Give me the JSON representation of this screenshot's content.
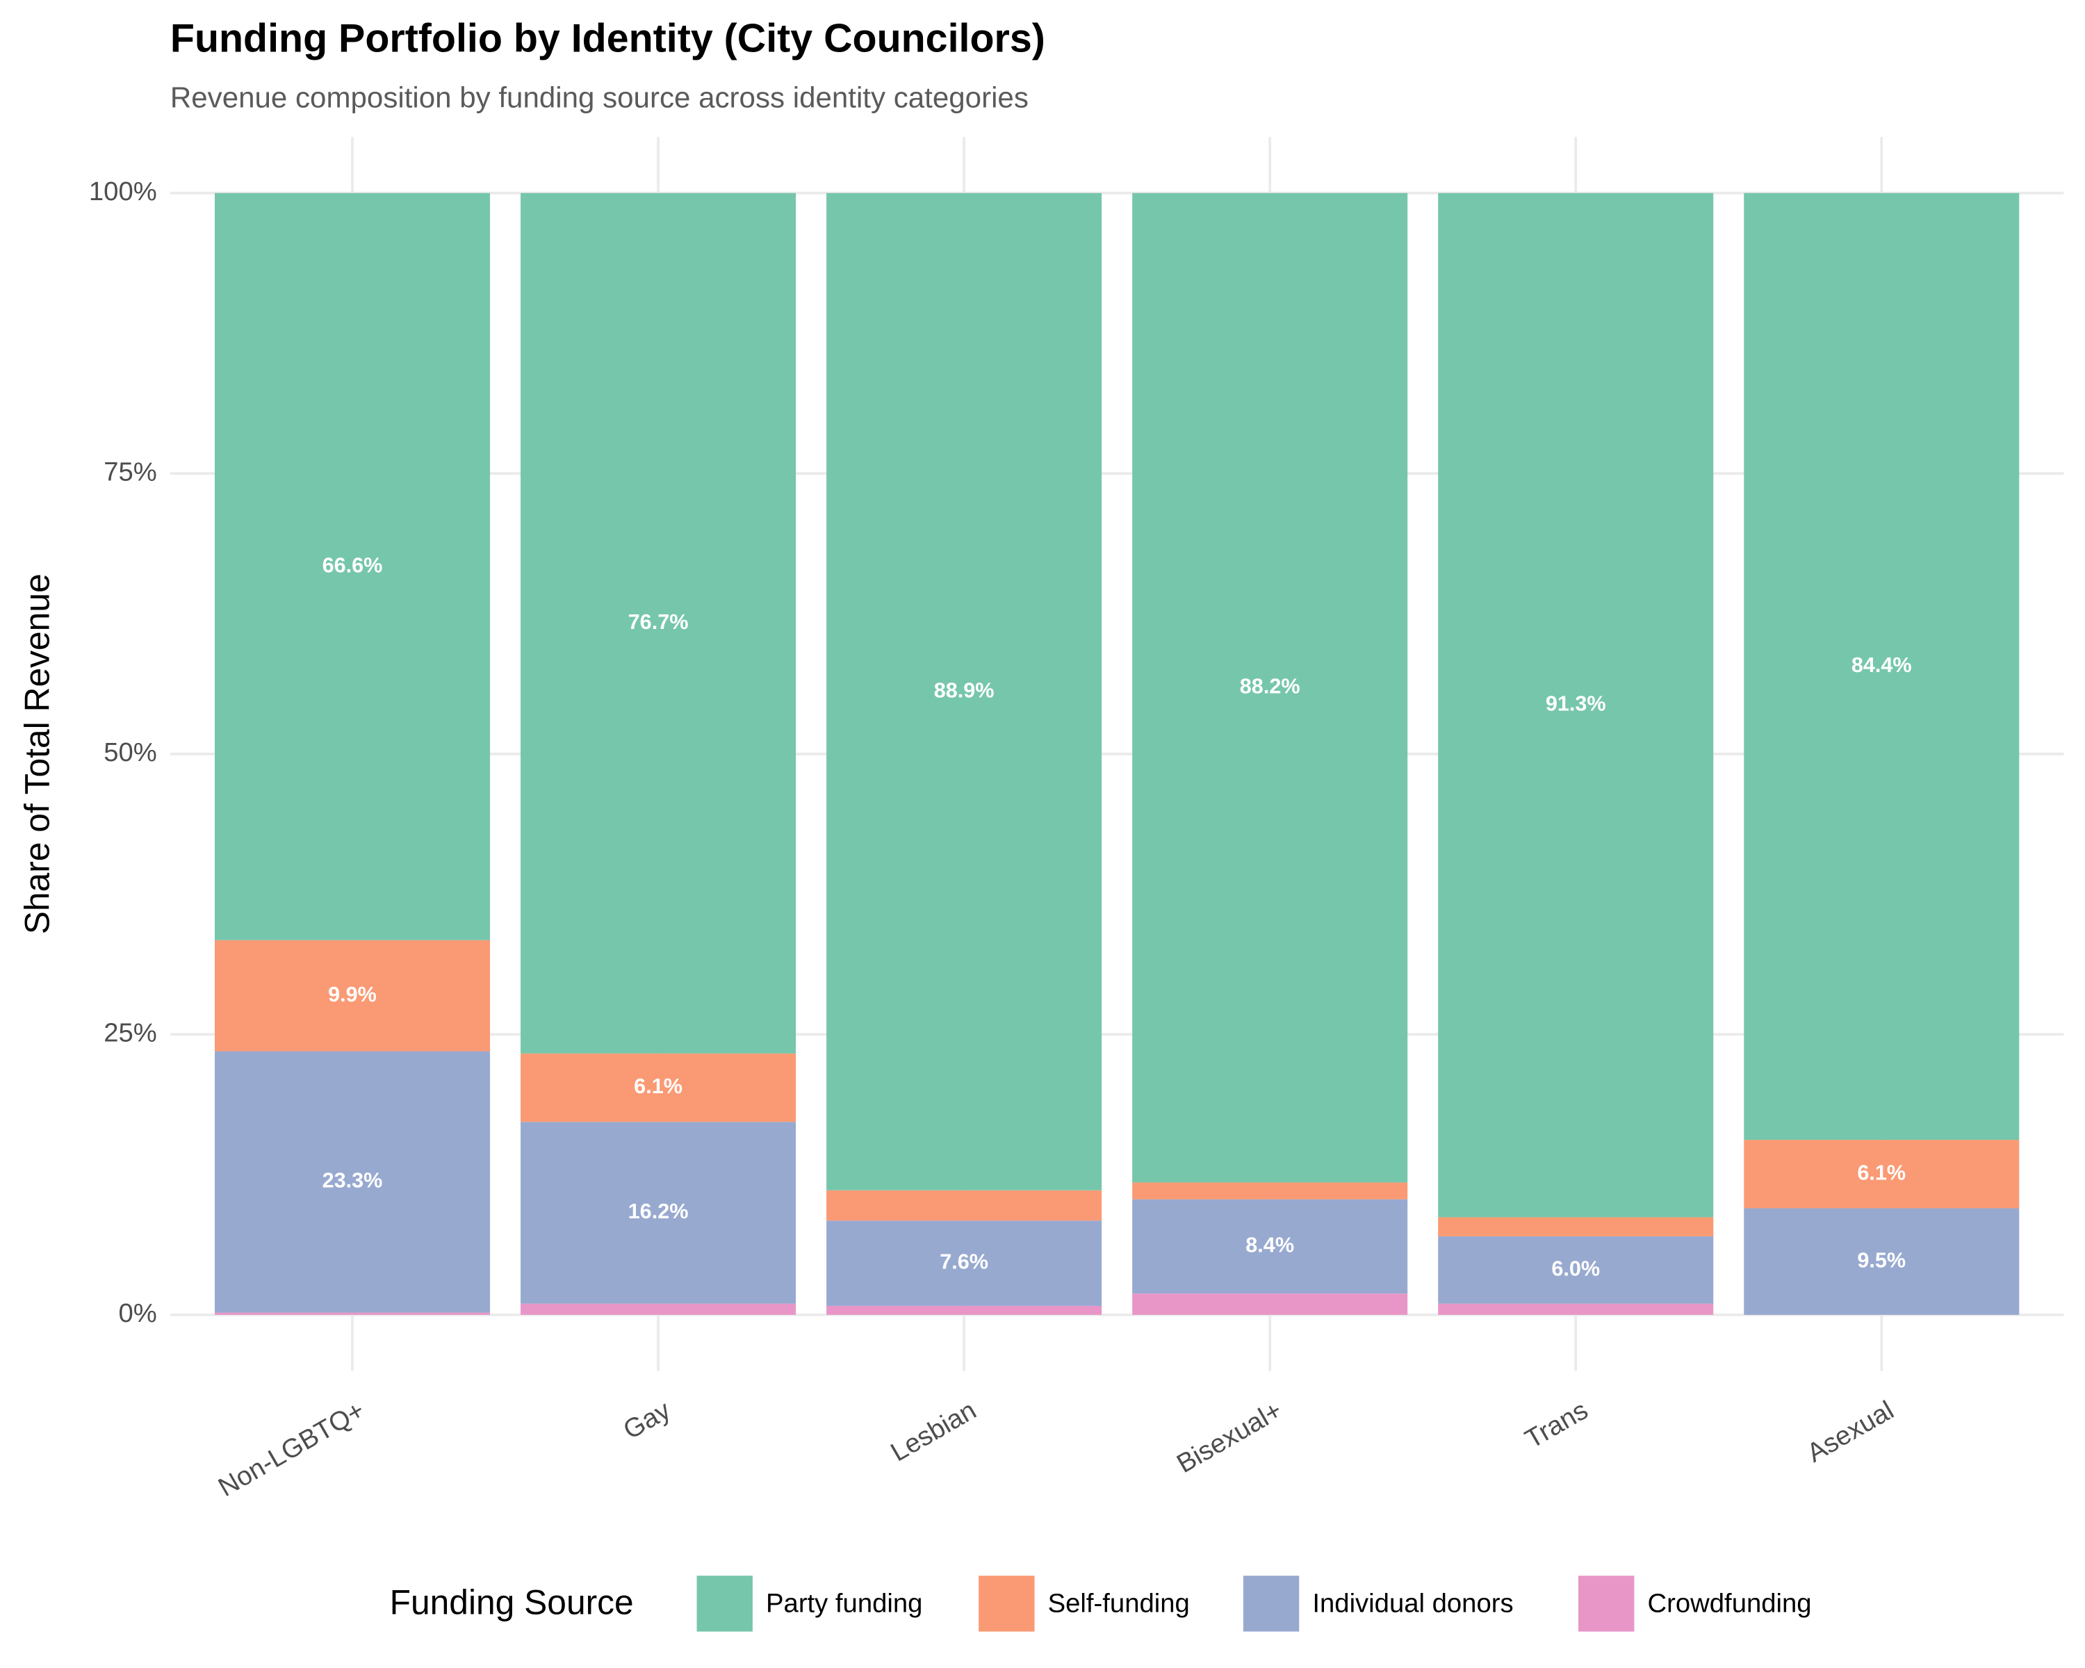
{
  "chart_data": {
    "type": "stacked_bar_100",
    "title": "Funding Portfolio by Identity (City Councilors)",
    "subtitle": "Revenue composition by funding source across identity categories",
    "y_label": "Share of Total Revenue",
    "legend_title": "Funding Source",
    "legend": "bottom",
    "grid": true,
    "categories": [
      "Non-LGBTQ+",
      "Gay",
      "Lesbian",
      "Bisexual+",
      "Trans",
      "Asexual"
    ],
    "series": [
      {
        "name": "Party funding",
        "color": "#76c6ab",
        "values": [
          66.6,
          76.7,
          88.9,
          88.2,
          91.3,
          84.4
        ],
        "value_labels": [
          "66.6%",
          "76.7%",
          "88.9%",
          "88.2%",
          "91.3%",
          "84.4%"
        ]
      },
      {
        "name": "Self-funding",
        "color": "#fa9a74",
        "values": [
          9.9,
          6.1,
          2.7,
          1.5,
          1.7,
          6.1
        ],
        "value_labels": [
          "9.9%",
          "6.1%",
          null,
          null,
          null,
          "6.1%"
        ]
      },
      {
        "name": "Individual donors",
        "color": "#98a9d0",
        "values": [
          23.3,
          16.2,
          7.6,
          8.4,
          6.0,
          9.5
        ],
        "value_labels": [
          "23.3%",
          "16.2%",
          "7.6%",
          "8.4%",
          "6.0%",
          "9.5%"
        ]
      },
      {
        "name": "Crowdfunding",
        "color": "#e896c7",
        "values": [
          0.2,
          1.0,
          0.8,
          1.9,
          1.0,
          0
        ],
        "value_labels": [
          null,
          null,
          null,
          null,
          null,
          null
        ]
      }
    ],
    "ylim": [
      -5,
      105
    ],
    "yticks": [
      {
        "value": 0,
        "label": "0%"
      },
      {
        "value": 25,
        "label": "25%"
      },
      {
        "value": 50,
        "label": "50%"
      },
      {
        "value": 75,
        "label": "75%"
      },
      {
        "value": 100,
        "label": "100%"
      }
    ]
  }
}
